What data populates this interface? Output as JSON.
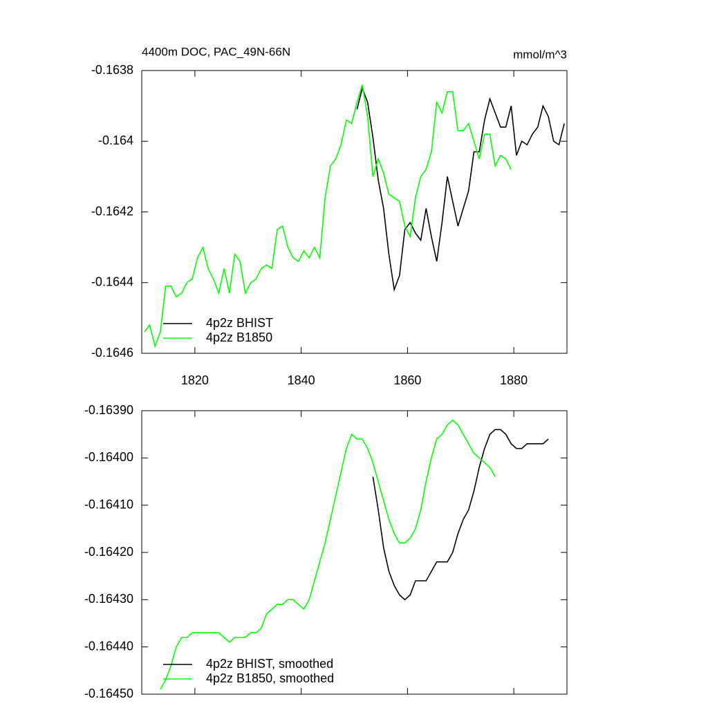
{
  "chart_data": [
    {
      "type": "line",
      "title": "4400m DOC, PAC_49N-66N",
      "units": "mmol/m^3",
      "xlim": [
        1810,
        1890
      ],
      "xticks": [
        1820,
        1840,
        1860,
        1880
      ],
      "ylim": [
        -0.1646,
        -0.1638
      ],
      "yticks": [
        -0.1646,
        -0.1644,
        -0.1642,
        -0.164,
        -0.1638
      ],
      "legend": "lower left",
      "series": [
        {
          "name": "4p2z BHIST",
          "color": "#000000",
          "x": [
            1850.5,
            1851.5,
            1852.5,
            1853.5,
            1854.5,
            1855.5,
            1856.5,
            1857.5,
            1858.5,
            1859.5,
            1860.5,
            1861.5,
            1862.5,
            1863.5,
            1864.5,
            1865.5,
            1866.5,
            1867.5,
            1868.5,
            1869.5,
            1870.5,
            1871.5,
            1872.5,
            1873.5,
            1874.5,
            1875.5,
            1876.5,
            1877.5,
            1878.5,
            1879.5,
            1880.5,
            1881.5,
            1882.5,
            1883.5,
            1884.5,
            1885.5,
            1886.5,
            1887.5,
            1888.5,
            1889.5
          ],
          "values": [
            -0.16391,
            -0.16385,
            -0.16389,
            -0.16399,
            -0.16411,
            -0.16419,
            -0.16432,
            -0.16442,
            -0.16438,
            -0.16425,
            -0.16423,
            -0.16426,
            -0.16428,
            -0.16419,
            -0.16427,
            -0.16434,
            -0.16423,
            -0.1641,
            -0.16417,
            -0.16424,
            -0.16419,
            -0.16414,
            -0.16403,
            -0.16403,
            -0.16394,
            -0.16388,
            -0.16392,
            -0.16396,
            -0.16396,
            -0.1639,
            -0.16404,
            -0.164,
            -0.16401,
            -0.16398,
            -0.16396,
            -0.1639,
            -0.16393,
            -0.164,
            -0.16401,
            -0.16395
          ]
        },
        {
          "name": "4p2z B1850",
          "color": "#00ff00",
          "x": [
            1810.5,
            1811.5,
            1812.5,
            1813.5,
            1814.5,
            1815.5,
            1816.5,
            1817.5,
            1818.5,
            1819.5,
            1820.5,
            1821.5,
            1822.5,
            1823.5,
            1824.5,
            1825.5,
            1826.5,
            1827.5,
            1828.5,
            1829.5,
            1830.5,
            1831.5,
            1832.5,
            1833.5,
            1834.5,
            1835.5,
            1836.5,
            1837.5,
            1838.5,
            1839.5,
            1840.5,
            1841.5,
            1842.5,
            1843.5,
            1844.5,
            1845.5,
            1846.5,
            1847.5,
            1848.5,
            1849.5,
            1850.5,
            1851.5,
            1852.5,
            1853.5,
            1854.5,
            1855.5,
            1856.5,
            1857.5,
            1858.5,
            1859.5,
            1860.5,
            1861.5,
            1862.5,
            1863.5,
            1864.5,
            1865.5,
            1866.5,
            1867.5,
            1868.5,
            1869.5,
            1870.5,
            1871.5,
            1872.5,
            1873.5,
            1874.5,
            1875.5,
            1876.5,
            1877.5,
            1878.5,
            1879.5
          ],
          "values": [
            -0.16454,
            -0.16452,
            -0.16458,
            -0.16454,
            -0.16441,
            -0.16441,
            -0.16444,
            -0.16443,
            -0.1644,
            -0.16439,
            -0.16433,
            -0.1643,
            -0.16436,
            -0.16439,
            -0.16443,
            -0.16436,
            -0.16443,
            -0.16432,
            -0.16434,
            -0.16443,
            -0.1644,
            -0.16439,
            -0.16436,
            -0.16435,
            -0.16436,
            -0.16425,
            -0.16424,
            -0.1643,
            -0.16433,
            -0.16434,
            -0.16431,
            -0.16433,
            -0.1643,
            -0.16433,
            -0.16416,
            -0.16407,
            -0.16405,
            -0.16401,
            -0.16394,
            -0.16395,
            -0.16389,
            -0.16384,
            -0.16393,
            -0.1641,
            -0.16405,
            -0.16409,
            -0.16415,
            -0.16416,
            -0.16417,
            -0.16424,
            -0.16427,
            -0.16416,
            -0.1641,
            -0.16408,
            -0.16403,
            -0.16389,
            -0.16392,
            -0.16386,
            -0.16386,
            -0.16397,
            -0.16397,
            -0.16395,
            -0.164,
            -0.16405,
            -0.16398,
            -0.16398,
            -0.16407,
            -0.16404,
            -0.16405,
            -0.16408
          ]
        }
      ]
    },
    {
      "type": "line",
      "xlim": [
        1810,
        1890
      ],
      "xticks": [
        1820,
        1840,
        1860,
        1880
      ],
      "ylim": [
        -0.1645,
        -0.1639
      ],
      "yticks": [
        {
          "value": -0.1645,
          "label": "-0.16450"
        },
        {
          "value": -0.1644,
          "label": "-0.16440"
        },
        {
          "value": -0.1643,
          "label": "-0.16430"
        },
        {
          "value": -0.1642,
          "label": "-0.16420"
        },
        {
          "value": -0.1641,
          "label": "-0.16410"
        },
        {
          "value": -0.164,
          "label": "-0.16400"
        },
        {
          "value": -0.1639,
          "label": "-0.16390"
        }
      ],
      "legend": "lower left",
      "series": [
        {
          "name": "4p2z BHIST, smoothed",
          "color": "#000000",
          "x": [
            1853.5,
            1854.5,
            1855.5,
            1856.5,
            1857.5,
            1858.5,
            1859.5,
            1860.5,
            1861.5,
            1862.5,
            1863.5,
            1864.5,
            1865.5,
            1866.5,
            1867.5,
            1868.5,
            1869.5,
            1870.5,
            1871.5,
            1872.5,
            1873.5,
            1874.5,
            1875.5,
            1876.5,
            1877.5,
            1878.5,
            1879.5,
            1880.5,
            1881.5,
            1882.5,
            1883.5,
            1884.5,
            1885.5,
            1886.5
          ],
          "values": [
            -0.16404,
            -0.16411,
            -0.16419,
            -0.16424,
            -0.16427,
            -0.16429,
            -0.1643,
            -0.16429,
            -0.16426,
            -0.16426,
            -0.16426,
            -0.16424,
            -0.16422,
            -0.16422,
            -0.16422,
            -0.1642,
            -0.16416,
            -0.16413,
            -0.16411,
            -0.16407,
            -0.16402,
            -0.16398,
            -0.16395,
            -0.16394,
            -0.16394,
            -0.16395,
            -0.16397,
            -0.16398,
            -0.16398,
            -0.16397,
            -0.16397,
            -0.16397,
            -0.16397,
            -0.16396
          ]
        },
        {
          "name": "4p2z B1850, smoothed",
          "color": "#00ff00",
          "x": [
            1813.5,
            1814.5,
            1815.5,
            1816.5,
            1817.5,
            1818.5,
            1819.5,
            1820.5,
            1821.5,
            1822.5,
            1823.5,
            1824.5,
            1825.5,
            1826.5,
            1827.5,
            1828.5,
            1829.5,
            1830.5,
            1831.5,
            1832.5,
            1833.5,
            1834.5,
            1835.5,
            1836.5,
            1837.5,
            1838.5,
            1839.5,
            1840.5,
            1841.5,
            1842.5,
            1843.5,
            1844.5,
            1845.5,
            1846.5,
            1847.5,
            1848.5,
            1849.5,
            1850.5,
            1851.5,
            1852.5,
            1853.5,
            1854.5,
            1855.5,
            1856.5,
            1857.5,
            1858.5,
            1859.5,
            1860.5,
            1861.5,
            1862.5,
            1863.5,
            1864.5,
            1865.5,
            1866.5,
            1867.5,
            1868.5,
            1869.5,
            1870.5,
            1871.5,
            1872.5,
            1873.5,
            1874.5,
            1875.5,
            1876.5
          ],
          "values": [
            -0.16449,
            -0.16447,
            -0.16444,
            -0.1644,
            -0.16438,
            -0.16438,
            -0.16437,
            -0.16437,
            -0.16437,
            -0.16437,
            -0.16437,
            -0.16437,
            -0.16438,
            -0.16439,
            -0.16438,
            -0.16438,
            -0.16438,
            -0.16437,
            -0.16437,
            -0.16436,
            -0.16433,
            -0.16432,
            -0.16431,
            -0.16431,
            -0.1643,
            -0.1643,
            -0.16431,
            -0.16432,
            -0.1643,
            -0.16426,
            -0.16422,
            -0.16418,
            -0.16413,
            -0.16408,
            -0.16403,
            -0.16398,
            -0.16395,
            -0.16396,
            -0.16396,
            -0.16398,
            -0.16401,
            -0.16405,
            -0.16409,
            -0.16413,
            -0.16416,
            -0.16418,
            -0.16418,
            -0.16417,
            -0.16415,
            -0.16411,
            -0.16405,
            -0.164,
            -0.16396,
            -0.16395,
            -0.16393,
            -0.16392,
            -0.16393,
            -0.16395,
            -0.16397,
            -0.16399,
            -0.164,
            -0.16401,
            -0.16402,
            -0.16404
          ]
        }
      ]
    }
  ]
}
